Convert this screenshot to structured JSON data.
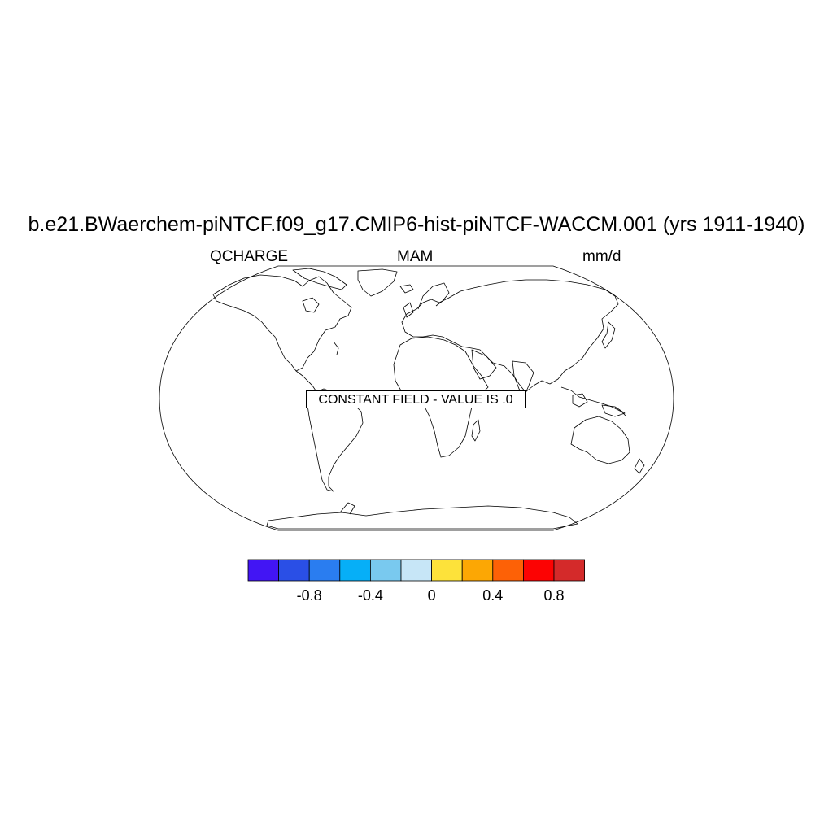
{
  "title": "b.e21.BWaerchem-piNTCF.f09_g17.CMIP6-hist-piNTCF-WACCM.001 (yrs 1911-1940)",
  "left_label": "QCHARGE",
  "center_label": "MAM",
  "right_label": "mm/d",
  "map": {
    "projection": "robinson",
    "note": "CONSTANT FIELD - VALUE IS .0"
  },
  "colorbar": {
    "colors": [
      "#4215f4",
      "#2a4fe6",
      "#2a7df0",
      "#06aff7",
      "#79c9ef",
      "#c7e6f7",
      "#fde23a",
      "#fca704",
      "#fd6106",
      "#fc0303",
      "#d42a2a"
    ],
    "tick_labels": [
      "-0.8",
      "-0.4",
      "0",
      "0.4",
      "0.8"
    ]
  }
}
